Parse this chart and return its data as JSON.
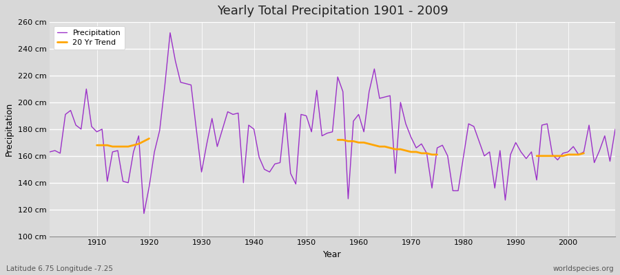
{
  "title": "Yearly Total Precipitation 1901 - 2009",
  "xlabel": "Year",
  "ylabel": "Precipitation",
  "subtitle_left": "Latitude 6.75 Longitude -7.25",
  "subtitle_right": "worldspecies.org",
  "bg_color": "#d8d8d8",
  "plot_bg_color": "#e0e0e0",
  "line_color": "#9b30c8",
  "trend_color": "#ffa500",
  "ylim": [
    100,
    260
  ],
  "xlim": [
    1901,
    2009
  ],
  "yticks": [
    100,
    120,
    140,
    160,
    180,
    200,
    220,
    240,
    260
  ],
  "ytick_labels": [
    "100 cm",
    "120 cm",
    "140 cm",
    "160 cm",
    "180 cm",
    "200 cm",
    "220 cm",
    "240 cm",
    "260 cm"
  ],
  "years": [
    1901,
    1902,
    1903,
    1904,
    1905,
    1906,
    1907,
    1908,
    1909,
    1910,
    1911,
    1912,
    1913,
    1914,
    1915,
    1916,
    1917,
    1918,
    1919,
    1920,
    1921,
    1922,
    1923,
    1924,
    1925,
    1926,
    1927,
    1928,
    1929,
    1930,
    1931,
    1932,
    1933,
    1934,
    1935,
    1936,
    1937,
    1938,
    1939,
    1940,
    1941,
    1942,
    1943,
    1944,
    1945,
    1946,
    1947,
    1948,
    1949,
    1950,
    1951,
    1952,
    1953,
    1954,
    1955,
    1956,
    1957,
    1958,
    1959,
    1960,
    1961,
    1962,
    1963,
    1964,
    1965,
    1966,
    1967,
    1968,
    1969,
    1970,
    1971,
    1972,
    1973,
    1974,
    1975,
    1976,
    1977,
    1978,
    1979,
    1980,
    1981,
    1982,
    1983,
    1984,
    1985,
    1986,
    1987,
    1988,
    1989,
    1990,
    1991,
    1992,
    1993,
    1994,
    1995,
    1996,
    1997,
    1998,
    1999,
    2000,
    2001,
    2002,
    2003,
    2004,
    2005,
    2006,
    2007,
    2008,
    2009
  ],
  "precip": [
    163,
    164,
    162,
    191,
    194,
    183,
    180,
    210,
    182,
    178,
    180,
    141,
    163,
    164,
    141,
    140,
    163,
    175,
    117,
    137,
    163,
    179,
    213,
    252,
    231,
    215,
    214,
    213,
    180,
    148,
    169,
    188,
    167,
    180,
    193,
    191,
    192,
    140,
    183,
    180,
    159,
    150,
    148,
    154,
    155,
    192,
    147,
    139,
    191,
    190,
    178,
    209,
    175,
    177,
    178,
    219,
    208,
    128,
    186,
    191,
    178,
    208,
    225,
    203,
    204,
    205,
    147,
    200,
    184,
    174,
    166,
    169,
    162,
    136,
    166,
    168,
    160,
    134,
    134,
    159,
    184,
    182,
    171,
    160,
    163,
    136,
    164,
    127,
    161,
    170,
    163,
    158,
    163,
    142,
    183,
    184,
    161,
    157,
    162,
    163,
    167,
    161,
    163,
    183,
    155,
    164,
    175,
    156,
    180
  ],
  "trend_seg1_years": [
    1910,
    1911,
    1912,
    1913,
    1914,
    1915,
    1916,
    1917,
    1918,
    1919,
    1920
  ],
  "trend_seg1_vals": [
    168,
    168,
    168,
    167,
    167,
    167,
    167,
    168,
    169,
    171,
    173
  ],
  "trend_seg2_years": [
    1956,
    1957,
    1958,
    1959,
    1960,
    1961,
    1962,
    1963,
    1964,
    1965,
    1966,
    1967,
    1968,
    1969,
    1970,
    1971,
    1972,
    1973,
    1974,
    1975
  ],
  "trend_seg2_vals": [
    172,
    172,
    171,
    171,
    170,
    170,
    169,
    168,
    167,
    167,
    166,
    165,
    165,
    164,
    163,
    163,
    162,
    162,
    161,
    161
  ],
  "trend_seg3_years": [
    1994,
    1995,
    1996,
    1997,
    1998,
    1999,
    2000,
    2001,
    2002,
    2003
  ],
  "trend_seg3_vals": [
    160,
    160,
    160,
    160,
    160,
    160,
    161,
    161,
    161,
    162
  ]
}
